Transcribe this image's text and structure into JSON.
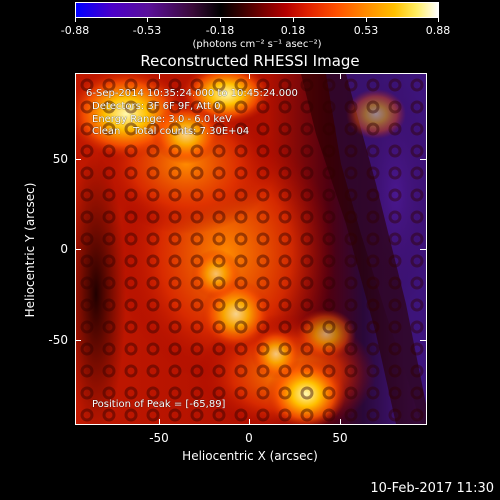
{
  "colorbar": {
    "ticks": [
      "-0.88",
      "-0.53",
      "-0.18",
      "0.18",
      "0.53",
      "0.88"
    ],
    "units": "(photons cm⁻² s⁻¹ asec⁻²)",
    "colors": [
      "#0000ff",
      "#5a109a",
      "#000000",
      "#b50000",
      "#ff8a00",
      "#ffffff"
    ]
  },
  "title": "Reconstructed RHESSI Image",
  "info": {
    "time_range": "6-Sep-2014 10:35:24.000 to 10:45:24.000",
    "detectors": "Detectors: 3F 6F 9F, Att 0",
    "energy": "Energy Range: 3.0 - 6.0 keV",
    "clean": "Clean    Total counts: 7.30E+04",
    "peak": "Position of Peak = [-65,89]"
  },
  "axes": {
    "x_title": "Heliocentric X (arcsec)",
    "y_title": "Heliocentric Y (arcsec)",
    "x_ticks": [
      "-50",
      "0",
      "50"
    ],
    "y_ticks": [
      "50",
      "0",
      "-50"
    ]
  },
  "datestamp": "10-Feb-2017 11:30"
}
